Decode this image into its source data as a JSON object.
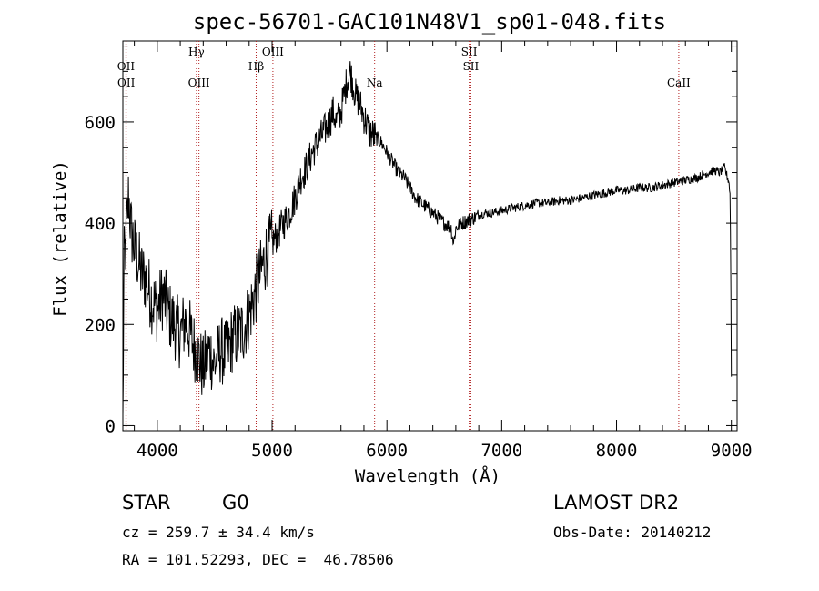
{
  "chart_data": {
    "type": "line",
    "title": "spec-56701-GAC101N48V1_sp01-048.fits",
    "xlabel": "Wavelength (Å)",
    "ylabel": "Flux (relative)",
    "xlim": [
      3700,
      9050
    ],
    "ylim": [
      -10,
      760
    ],
    "x_ticks": [
      4000,
      5000,
      6000,
      7000,
      8000,
      9000
    ],
    "x_tick_labels": [
      "4000",
      "5000",
      "6000",
      "7000",
      "8000",
      "9000"
    ],
    "y_ticks": [
      0,
      200,
      400,
      600
    ],
    "y_tick_labels": [
      "0",
      "200",
      "400",
      "600"
    ],
    "grid": false,
    "line_color": "#000000",
    "marker_color": "#b22222",
    "series": [
      {
        "x": [
          3700,
          3710,
          3730,
          3750,
          3770,
          3800,
          3830,
          3860,
          3900,
          3950,
          4000,
          4050,
          4100,
          4150,
          4200,
          4250,
          4300,
          4350,
          4400,
          4450,
          4500,
          4550,
          4600,
          4650,
          4700,
          4750,
          4800,
          4850,
          4900,
          4950,
          5000,
          5050,
          5100,
          5150,
          5200,
          5250,
          5300,
          5350,
          5400,
          5450,
          5500,
          5530,
          5560,
          5600,
          5650,
          5680,
          5700,
          5730,
          5760,
          5800,
          5850,
          5900,
          5950,
          6000,
          6050,
          6100,
          6150,
          6200,
          6250,
          6300,
          6350,
          6400,
          6450,
          6500,
          6560,
          6580,
          6600,
          6650,
          6700,
          6750,
          6800,
          6850,
          6900,
          7000,
          7100,
          7200,
          7300,
          7400,
          7500,
          7600,
          7700,
          7800,
          7900,
          8000,
          8100,
          8200,
          8300,
          8400,
          8500,
          8600,
          8700,
          8750,
          8800,
          8850,
          8900,
          8940,
          8960,
          8980,
          8990,
          8995,
          9000
        ],
        "y": [
          0,
          320,
          370,
          460,
          390,
          350,
          330,
          300,
          290,
          250,
          230,
          260,
          220,
          200,
          180,
          210,
          170,
          140,
          110,
          150,
          120,
          150,
          140,
          170,
          180,
          190,
          220,
          260,
          300,
          340,
          360,
          380,
          400,
          420,
          450,
          490,
          510,
          540,
          560,
          580,
          600,
          620,
          600,
          620,
          680,
          700,
          680,
          650,
          640,
          610,
          580,
          570,
          560,
          540,
          520,
          500,
          490,
          470,
          450,
          440,
          430,
          420,
          410,
          400,
          390,
          360,
          390,
          400,
          405,
          410,
          415,
          420,
          420,
          425,
          430,
          435,
          440,
          440,
          445,
          445,
          450,
          455,
          460,
          465,
          465,
          470,
          470,
          475,
          480,
          485,
          490,
          495,
          500,
          505,
          500,
          510,
          495,
          480,
          450,
          300,
          100
        ]
      }
    ],
    "line_markers": [
      {
        "label": "OII",
        "x": 3727,
        "level": 1
      },
      {
        "label": "OII",
        "x": 3729,
        "level": 2
      },
      {
        "label": "Hγ",
        "x": 4341,
        "level": 0
      },
      {
        "label": "OIII",
        "x": 4363,
        "level": 2
      },
      {
        "label": "Hβ",
        "x": 4861,
        "level": 1
      },
      {
        "label": "OIII",
        "x": 5007,
        "level": 0
      },
      {
        "label": "Na",
        "x": 5893,
        "level": 2
      },
      {
        "label": "SII",
        "x": 6717,
        "level": 0
      },
      {
        "label": "SII",
        "x": 6731,
        "level": 1
      },
      {
        "label": "CaII",
        "x": 8542,
        "level": 2
      }
    ]
  },
  "info": {
    "class_label": "STAR",
    "subclass_label": "G0",
    "survey_label": "LAMOST DR2",
    "redshift_text": "cz = 259.7 ± 34.4 km/s",
    "obs_date_text": "Obs-Date: 20140212",
    "coords_text": "RA = 101.52293, DEC =  46.78506"
  }
}
